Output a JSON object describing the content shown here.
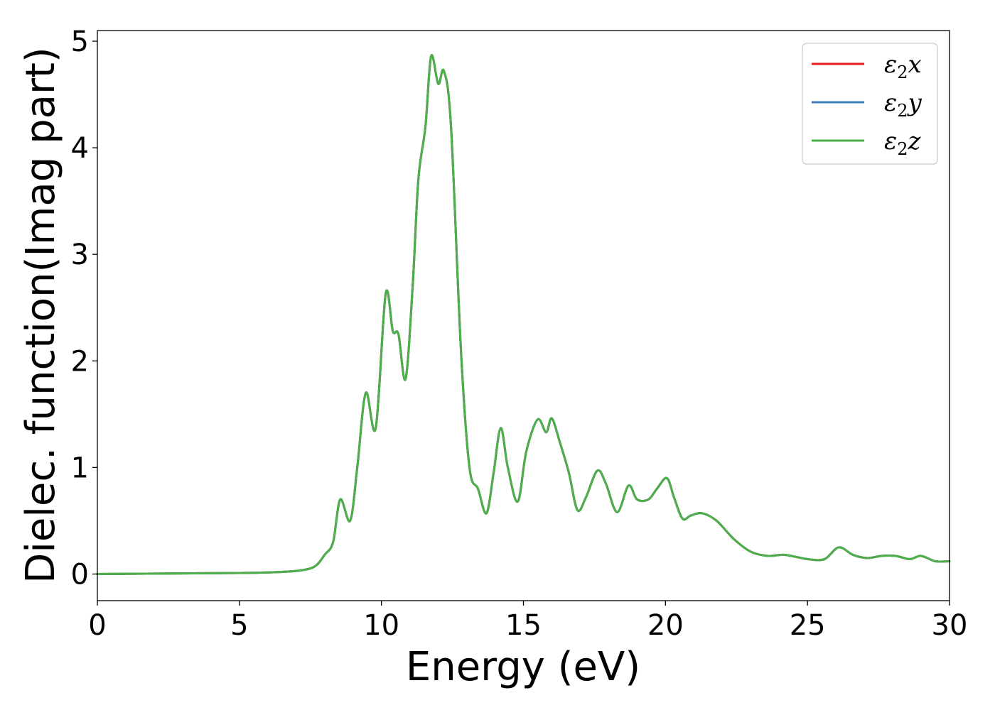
{
  "chart_data": {
    "type": "line",
    "xlabel": "Energy (eV)",
    "ylabel": "Dielec. function(Imag part)",
    "xlim": [
      0,
      30
    ],
    "ylim": [
      -0.25,
      5.1
    ],
    "xticks": [
      0,
      5,
      10,
      15,
      20,
      25,
      30
    ],
    "yticks": [
      0,
      1,
      2,
      3,
      4,
      5
    ],
    "grid": false,
    "legend_position": "top-right",
    "x": [
      0,
      5,
      6.5,
      7.3,
      7.7,
      8.0,
      8.3,
      8.55,
      8.9,
      9.15,
      9.45,
      9.8,
      10.15,
      10.4,
      10.6,
      10.85,
      11.1,
      11.3,
      11.55,
      11.75,
      12.0,
      12.2,
      12.45,
      12.8,
      13.1,
      13.4,
      13.7,
      13.95,
      14.2,
      14.45,
      14.8,
      15.1,
      15.5,
      15.8,
      16.0,
      16.3,
      16.6,
      16.9,
      17.2,
      17.6,
      17.9,
      18.3,
      18.7,
      19.0,
      19.4,
      19.7,
      20.05,
      20.3,
      20.6,
      20.9,
      21.3,
      21.8,
      22.4,
      23.0,
      23.6,
      24.2,
      25.0,
      25.6,
      26.1,
      26.6,
      27.1,
      27.6,
      28.1,
      28.6,
      29.0,
      29.5,
      30.0
    ],
    "series": [
      {
        "name": "ε₂x",
        "color": "#e41a1c",
        "values": [
          0,
          0.01,
          0.02,
          0.04,
          0.08,
          0.18,
          0.3,
          0.7,
          0.5,
          1.0,
          1.7,
          1.37,
          2.63,
          2.28,
          2.25,
          1.83,
          2.7,
          3.7,
          4.2,
          4.86,
          4.6,
          4.72,
          4.2,
          2.1,
          1.0,
          0.8,
          0.57,
          0.95,
          1.37,
          1.0,
          0.68,
          1.15,
          1.45,
          1.33,
          1.46,
          1.22,
          0.95,
          0.6,
          0.72,
          0.97,
          0.85,
          0.58,
          0.83,
          0.7,
          0.7,
          0.8,
          0.9,
          0.72,
          0.52,
          0.55,
          0.57,
          0.5,
          0.33,
          0.21,
          0.17,
          0.18,
          0.14,
          0.14,
          0.25,
          0.18,
          0.15,
          0.17,
          0.17,
          0.14,
          0.17,
          0.12,
          0.12
        ]
      },
      {
        "name": "ε₂y",
        "color": "#377eb8",
        "values": [
          0,
          0.01,
          0.02,
          0.04,
          0.08,
          0.18,
          0.3,
          0.7,
          0.5,
          1.0,
          1.7,
          1.37,
          2.63,
          2.28,
          2.25,
          1.83,
          2.7,
          3.7,
          4.2,
          4.86,
          4.6,
          4.72,
          4.2,
          2.1,
          1.0,
          0.8,
          0.57,
          0.95,
          1.37,
          1.0,
          0.68,
          1.15,
          1.45,
          1.33,
          1.46,
          1.22,
          0.95,
          0.6,
          0.72,
          0.97,
          0.85,
          0.58,
          0.83,
          0.7,
          0.7,
          0.8,
          0.9,
          0.72,
          0.52,
          0.55,
          0.57,
          0.5,
          0.33,
          0.21,
          0.17,
          0.18,
          0.14,
          0.14,
          0.25,
          0.18,
          0.15,
          0.17,
          0.17,
          0.14,
          0.17,
          0.12,
          0.12
        ]
      },
      {
        "name": "ε₂z",
        "color": "#4daf4a",
        "values": [
          0,
          0.01,
          0.02,
          0.04,
          0.08,
          0.18,
          0.3,
          0.7,
          0.5,
          1.0,
          1.7,
          1.37,
          2.63,
          2.28,
          2.25,
          1.83,
          2.7,
          3.7,
          4.2,
          4.86,
          4.6,
          4.72,
          4.2,
          2.1,
          1.0,
          0.8,
          0.57,
          0.95,
          1.37,
          1.0,
          0.68,
          1.15,
          1.45,
          1.33,
          1.46,
          1.22,
          0.95,
          0.6,
          0.72,
          0.97,
          0.85,
          0.58,
          0.83,
          0.7,
          0.7,
          0.8,
          0.9,
          0.72,
          0.52,
          0.55,
          0.57,
          0.5,
          0.33,
          0.21,
          0.17,
          0.18,
          0.14,
          0.14,
          0.25,
          0.18,
          0.15,
          0.17,
          0.17,
          0.14,
          0.17,
          0.12,
          0.12
        ]
      }
    ],
    "legend": [
      {
        "base": "ε",
        "sub": "2",
        "suffix": "x"
      },
      {
        "base": "ε",
        "sub": "2",
        "suffix": "y"
      },
      {
        "base": "ε",
        "sub": "2",
        "suffix": "z"
      }
    ]
  }
}
